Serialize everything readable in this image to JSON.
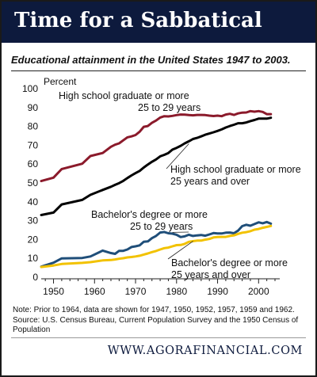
{
  "header": {
    "title": "Time for a Sabbatical"
  },
  "subtitle": "Educational attainment in the United States 1947 to 2003.",
  "footer": {
    "url": "WWW.AGORAFINANCIAL.COM"
  },
  "colors": {
    "banner": "#0d1a3d",
    "hs_25_29": "#8b1a2b",
    "hs_25_over": "#000000",
    "ba_25_29": "#1f4e79",
    "ba_25_over": "#f2c200"
  },
  "chart_data": {
    "type": "line",
    "ylabel": "Percent",
    "xlim": [
      1947,
      2004
    ],
    "ylim": [
      0,
      100
    ],
    "xticks": [
      1950,
      1960,
      1970,
      1980,
      1990,
      2000
    ],
    "yticks": [
      0,
      10,
      20,
      30,
      40,
      50,
      60,
      70,
      80,
      90,
      100
    ],
    "grid": false,
    "series": [
      {
        "key": "hs_25_29",
        "name": "High school graduate or more 25 to 29 years",
        "label_lines": [
          "High school graduate or more",
          "25 to 29 years"
        ],
        "color": "#8b1a2b",
        "points": [
          [
            1947,
            51
          ],
          [
            1950,
            52.8
          ],
          [
            1952,
            57.4
          ],
          [
            1957,
            60.2
          ],
          [
            1959,
            64.3
          ],
          [
            1962,
            65.9
          ],
          [
            1964,
            69.2
          ],
          [
            1965,
            70.3
          ],
          [
            1966,
            71.0
          ],
          [
            1967,
            72.6
          ],
          [
            1968,
            74.2
          ],
          [
            1969,
            74.7
          ],
          [
            1970,
            75.4
          ],
          [
            1971,
            77.2
          ],
          [
            1972,
            79.8
          ],
          [
            1973,
            80.2
          ],
          [
            1974,
            81.9
          ],
          [
            1975,
            83.1
          ],
          [
            1976,
            84.7
          ],
          [
            1977,
            85.4
          ],
          [
            1978,
            85.3
          ],
          [
            1979,
            85.6
          ],
          [
            1980,
            86.0
          ],
          [
            1981,
            86.3
          ],
          [
            1982,
            86.2
          ],
          [
            1983,
            86.0
          ],
          [
            1984,
            85.9
          ],
          [
            1985,
            86.1
          ],
          [
            1986,
            86.1
          ],
          [
            1987,
            86.0
          ],
          [
            1988,
            85.7
          ],
          [
            1989,
            85.5
          ],
          [
            1990,
            85.7
          ],
          [
            1991,
            85.4
          ],
          [
            1992,
            86.3
          ],
          [
            1993,
            86.7
          ],
          [
            1994,
            86.1
          ],
          [
            1995,
            86.9
          ],
          [
            1996,
            87.3
          ],
          [
            1997,
            87.4
          ],
          [
            1998,
            88.1
          ],
          [
            1999,
            87.8
          ],
          [
            2000,
            88.1
          ],
          [
            2001,
            87.7
          ],
          [
            2002,
            86.5
          ],
          [
            2003,
            86.5
          ]
        ]
      },
      {
        "key": "hs_25_over",
        "name": "High school graduate or more 25 years and over",
        "label_lines": [
          "High school graduate or more",
          "25 years and over"
        ],
        "color": "#000000",
        "points": [
          [
            1947,
            33
          ],
          [
            1950,
            34.3
          ],
          [
            1952,
            38.6
          ],
          [
            1957,
            41.0
          ],
          [
            1959,
            43.7
          ],
          [
            1962,
            46.3
          ],
          [
            1964,
            48.0
          ],
          [
            1965,
            49.0
          ],
          [
            1966,
            49.9
          ],
          [
            1967,
            51.1
          ],
          [
            1968,
            52.6
          ],
          [
            1969,
            54.0
          ],
          [
            1970,
            55.2
          ],
          [
            1971,
            56.4
          ],
          [
            1972,
            58.2
          ],
          [
            1973,
            59.8
          ],
          [
            1974,
            61.2
          ],
          [
            1975,
            62.5
          ],
          [
            1976,
            64.1
          ],
          [
            1977,
            64.9
          ],
          [
            1978,
            65.9
          ],
          [
            1979,
            67.7
          ],
          [
            1980,
            68.6
          ],
          [
            1981,
            69.7
          ],
          [
            1982,
            71.0
          ],
          [
            1983,
            72.1
          ],
          [
            1984,
            73.3
          ],
          [
            1985,
            73.9
          ],
          [
            1986,
            74.7
          ],
          [
            1987,
            75.6
          ],
          [
            1988,
            76.2
          ],
          [
            1989,
            76.9
          ],
          [
            1990,
            77.6
          ],
          [
            1991,
            78.4
          ],
          [
            1992,
            79.4
          ],
          [
            1993,
            80.2
          ],
          [
            1994,
            80.9
          ],
          [
            1995,
            81.7
          ],
          [
            1996,
            81.7
          ],
          [
            1997,
            82.1
          ],
          [
            1998,
            82.8
          ],
          [
            1999,
            83.4
          ],
          [
            2000,
            84.1
          ],
          [
            2001,
            84.1
          ],
          [
            2002,
            84.1
          ],
          [
            2003,
            84.6
          ]
        ]
      },
      {
        "key": "ba_25_29",
        "name": "Bachelor's degree or more 25 to 29 years",
        "label_lines": [
          "Bachelor's degree or more",
          "25 to 29 years"
        ],
        "color": "#1f4e79",
        "points": [
          [
            1947,
            5.6
          ],
          [
            1950,
            7.7
          ],
          [
            1952,
            10.0
          ],
          [
            1957,
            10.2
          ],
          [
            1959,
            11.0
          ],
          [
            1962,
            14.1
          ],
          [
            1964,
            12.8
          ],
          [
            1965,
            12.4
          ],
          [
            1966,
            14.0
          ],
          [
            1967,
            14.0
          ],
          [
            1968,
            14.7
          ],
          [
            1969,
            16.0
          ],
          [
            1970,
            16.4
          ],
          [
            1971,
            16.9
          ],
          [
            1972,
            18.8
          ],
          [
            1973,
            19.0
          ],
          [
            1974,
            20.7
          ],
          [
            1975,
            21.9
          ],
          [
            1976,
            23.7
          ],
          [
            1977,
            24.0
          ],
          [
            1978,
            23.3
          ],
          [
            1979,
            23.1
          ],
          [
            1980,
            22.5
          ],
          [
            1981,
            21.3
          ],
          [
            1982,
            21.7
          ],
          [
            1983,
            22.5
          ],
          [
            1984,
            21.9
          ],
          [
            1985,
            22.2
          ],
          [
            1986,
            22.4
          ],
          [
            1987,
            22.0
          ],
          [
            1988,
            22.7
          ],
          [
            1989,
            23.4
          ],
          [
            1990,
            23.2
          ],
          [
            1991,
            23.2
          ],
          [
            1992,
            23.6
          ],
          [
            1993,
            23.7
          ],
          [
            1994,
            23.3
          ],
          [
            1995,
            24.7
          ],
          [
            1996,
            27.1
          ],
          [
            1997,
            27.8
          ],
          [
            1998,
            27.3
          ],
          [
            1999,
            28.2
          ],
          [
            2000,
            29.1
          ],
          [
            2001,
            28.6
          ],
          [
            2002,
            29.3
          ],
          [
            2003,
            28.4
          ]
        ]
      },
      {
        "key": "ba_25_over",
        "name": "Bachelor's degree or more 25 years and over",
        "label_lines": [
          "Bachelor's degree or more",
          "25 years and over"
        ],
        "color": "#f2c200",
        "points": [
          [
            1947,
            5.4
          ],
          [
            1950,
            6.2
          ],
          [
            1952,
            7.0
          ],
          [
            1957,
            7.6
          ],
          [
            1959,
            8.0
          ],
          [
            1962,
            8.9
          ],
          [
            1964,
            9.1
          ],
          [
            1965,
            9.4
          ],
          [
            1966,
            9.8
          ],
          [
            1967,
            10.1
          ],
          [
            1968,
            10.5
          ],
          [
            1969,
            10.7
          ],
          [
            1970,
            11.0
          ],
          [
            1971,
            11.4
          ],
          [
            1972,
            12.0
          ],
          [
            1973,
            12.6
          ],
          [
            1974,
            13.3
          ],
          [
            1975,
            13.9
          ],
          [
            1976,
            14.7
          ],
          [
            1977,
            15.4
          ],
          [
            1978,
            15.7
          ],
          [
            1979,
            16.4
          ],
          [
            1980,
            17.0
          ],
          [
            1981,
            17.1
          ],
          [
            1982,
            17.7
          ],
          [
            1983,
            18.8
          ],
          [
            1984,
            19.1
          ],
          [
            1985,
            19.4
          ],
          [
            1986,
            19.4
          ],
          [
            1987,
            19.9
          ],
          [
            1988,
            20.3
          ],
          [
            1989,
            21.1
          ],
          [
            1990,
            21.3
          ],
          [
            1991,
            21.4
          ],
          [
            1992,
            21.4
          ],
          [
            1993,
            21.9
          ],
          [
            1994,
            22.2
          ],
          [
            1995,
            23.0
          ],
          [
            1996,
            23.6
          ],
          [
            1997,
            23.9
          ],
          [
            1998,
            24.4
          ],
          [
            1999,
            25.2
          ],
          [
            2000,
            25.6
          ],
          [
            2001,
            26.2
          ],
          [
            2002,
            26.7
          ],
          [
            2003,
            27.2
          ]
        ]
      }
    ]
  },
  "note": "Note: Prior to 1964, data are shown for 1947, 1950, 1952, 1957, 1959 and 1962. Source: U.S. Census Bureau, Current Population Survey and the 1950 Census of Population"
}
